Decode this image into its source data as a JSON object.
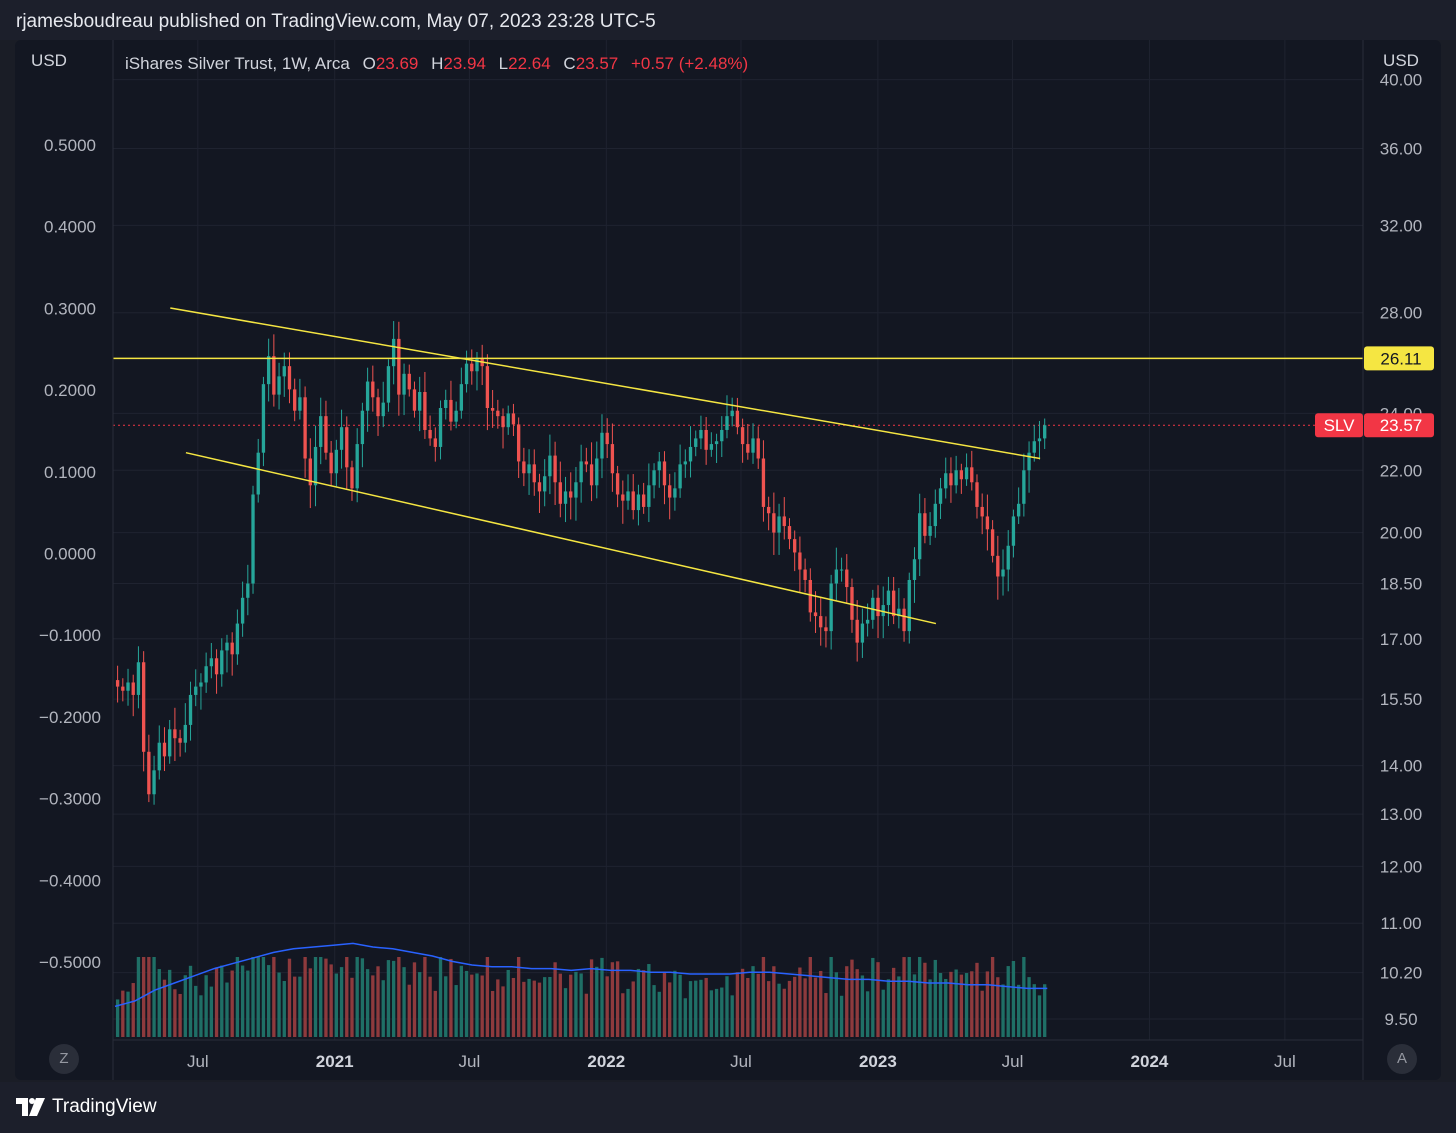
{
  "header": {
    "published_text": "rjamesboudreau published on TradingView.com, May 07, 2023 23:28 UTC-5"
  },
  "legend": {
    "symbol": "iShares Silver Trust, 1W, Arca",
    "open_label": "O",
    "open": "23.69",
    "high_label": "H",
    "high": "23.94",
    "low_label": "L",
    "low": "22.64",
    "close_label": "C",
    "close": "23.57",
    "change": "+0.57 (+2.48%)"
  },
  "axes": {
    "left_unit": "USD",
    "right_unit": "USD",
    "left_ticks": [
      "0.5000",
      "0.4000",
      "0.3000",
      "0.2000",
      "0.1000",
      "0.0000",
      "−0.1000",
      "−0.2000",
      "−0.3000",
      "−0.4000",
      "−0.5000"
    ],
    "right_ticks": [
      "40.00",
      "36.00",
      "32.00",
      "28.00",
      "24.00",
      "22.00",
      "20.00",
      "18.50",
      "17.00",
      "15.50",
      "14.00",
      "13.00",
      "12.00",
      "11.00",
      "10.20",
      "9.50"
    ],
    "time_ticks": [
      "Jul",
      "2021",
      "Jul",
      "2022",
      "Jul",
      "2023",
      "Jul",
      "2024",
      "Jul"
    ],
    "time_ticks_bold": [
      false,
      true,
      false,
      true,
      false,
      true,
      false,
      true,
      false
    ]
  },
  "buttons": {
    "left_corner": "Z",
    "right_corner": "A"
  },
  "price_labels": {
    "horizontal_line_value": "26.11",
    "last_symbol": "SLV",
    "last_price": "23.57"
  },
  "footer": {
    "brand": "TradingView"
  },
  "colors": {
    "up": "#26a69a",
    "down": "#ef5350",
    "volume_up": "#1f6f66",
    "volume_down": "#8e3a3d",
    "trendline": "#f5e642",
    "volume_ma": "#2962ff",
    "last_price": "#f23645"
  },
  "chart_data": {
    "type": "candlestick",
    "symbol": "SLV",
    "interval": "1W",
    "y_scale": "log",
    "y_range": [
      9.2,
      42.5
    ],
    "x_range": [
      "2020-03-09",
      "2024-10-14"
    ],
    "weekly_close": [
      15.8,
      15.7,
      15.9,
      15.6,
      16.4,
      14.3,
      13.4,
      13.9,
      14.5,
      14.2,
      14.8,
      14.6,
      14.5,
      14.9,
      15.6,
      15.8,
      15.9,
      16.3,
      16.5,
      16.1,
      16.7,
      16.9,
      16.6,
      17.4,
      18.1,
      18.5,
      21.2,
      22.6,
      25.1,
      26.2,
      24.7,
      25.4,
      25.8,
      24.9,
      24.1,
      24.6,
      22.4,
      21.5,
      22.8,
      23.9,
      22.6,
      21.9,
      22.7,
      23.5,
      22.1,
      21.4,
      22.9,
      24.1,
      25.2,
      24.6,
      23.9,
      24.4,
      25.8,
      26.9,
      24.7,
      25.5,
      24.9,
      24.1,
      24.8,
      23.4,
      23.1,
      22.8,
      24.2,
      24.5,
      23.7,
      24.1,
      25.1,
      25.9,
      25.6,
      26.1,
      25.8,
      24.2,
      24.1,
      23.9,
      23.5,
      24.0,
      23.6,
      22.3,
      21.9,
      22.2,
      21.6,
      21.3,
      21.8,
      22.5,
      21.6,
      20.9,
      21.3,
      21.1,
      21.6,
      22.3,
      22.2,
      21.5,
      22.4,
      23.3,
      22.9,
      21.9,
      21.2,
      21.0,
      21.3,
      20.7,
      21.2,
      20.8,
      21.5,
      22.0,
      22.3,
      21.5,
      21.1,
      21.4,
      22.2,
      22.3,
      22.8,
      23.1,
      23.4,
      22.7,
      22.9,
      23.0,
      23.4,
      23.9,
      24.1,
      23.5,
      22.9,
      22.6,
      23.1,
      22.4,
      20.8,
      20.6,
      20.0,
      20.5,
      20.2,
      19.8,
      19.4,
      18.9,
      18.6,
      17.7,
      17.6,
      17.3,
      17.2,
      18.5,
      18.9,
      18.9,
      18.4,
      17.5,
      16.9,
      17.4,
      17.5,
      18.1,
      17.6,
      17.9,
      18.3,
      17.6,
      17.8,
      17.2,
      18.6,
      19.2,
      20.6,
      19.9,
      20.2,
      20.9,
      21.4,
      21.9,
      21.5,
      22.0,
      21.7,
      22.1,
      21.6,
      20.8,
      20.5,
      20.1,
      19.3,
      18.7,
      18.9,
      19.6,
      20.5,
      20.9,
      22.0,
      22.6,
      23.0,
      23.1,
      23.57
    ],
    "volume_ma_shape": [
      0.17,
      0.2,
      0.26,
      0.3,
      0.34,
      0.38,
      0.41,
      0.44,
      0.47,
      0.49,
      0.5,
      0.51,
      0.52,
      0.5,
      0.49,
      0.47,
      0.45,
      0.42,
      0.4,
      0.39,
      0.39,
      0.38,
      0.38,
      0.37,
      0.38,
      0.37,
      0.37,
      0.36,
      0.36,
      0.35,
      0.35,
      0.35,
      0.36,
      0.36,
      0.35,
      0.34,
      0.33,
      0.32,
      0.32,
      0.31,
      0.31,
      0.3,
      0.3,
      0.29,
      0.29,
      0.28,
      0.27,
      0.27
    ],
    "trendlines": [
      {
        "from": {
          "x": "2020-05-25",
          "y": 28.2
        },
        "to": {
          "x": "2023-08-07",
          "y": 22.4
        }
      },
      {
        "from": {
          "x": "2020-06-15",
          "y": 22.6
        },
        "to": {
          "x": "2023-03-20",
          "y": 17.4
        }
      },
      {
        "horizontal": true,
        "y": 26.11
      }
    ]
  }
}
